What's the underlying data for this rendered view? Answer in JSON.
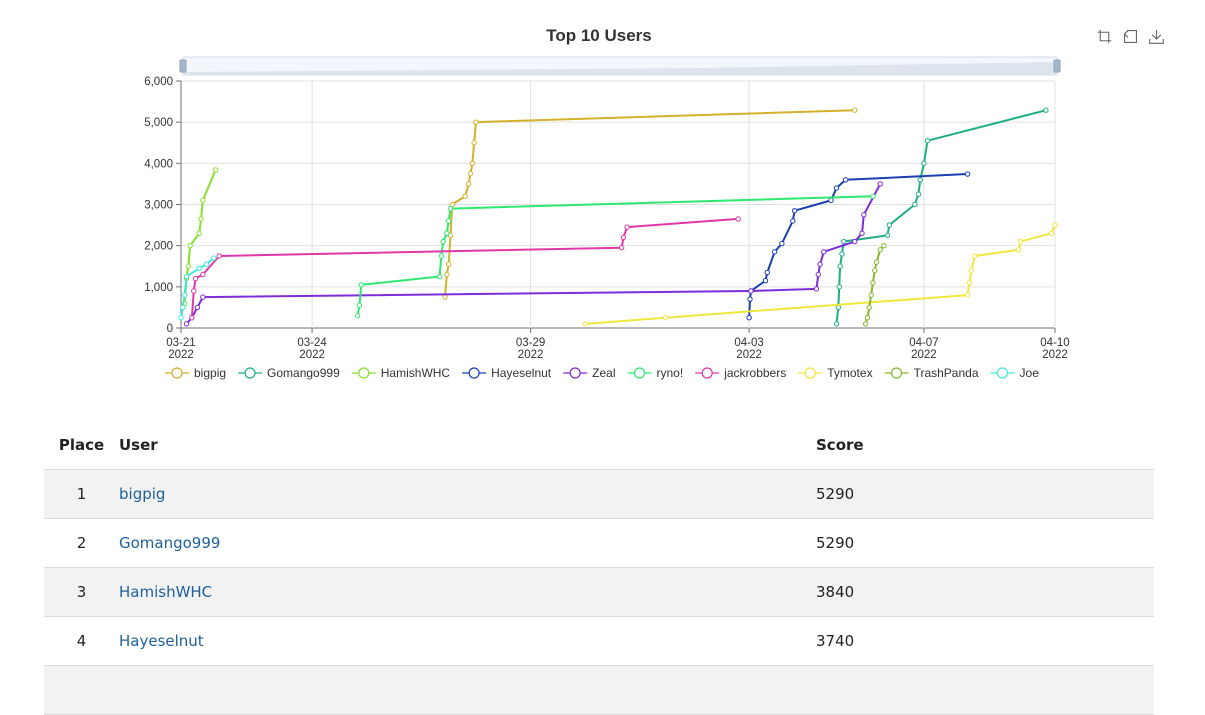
{
  "chart_data": {
    "type": "line",
    "title": "Top 10 Users",
    "x_ticks": [
      {
        "date": "2022-03-21",
        "line1": "03-21",
        "line2": "2022"
      },
      {
        "date": "2022-03-24",
        "line1": "03-24",
        "line2": "2022"
      },
      {
        "date": "2022-03-29",
        "line1": "03-29",
        "line2": "2022"
      },
      {
        "date": "2022-04-03",
        "line1": "04-03",
        "line2": "2022"
      },
      {
        "date": "2022-04-07",
        "line1": "04-07",
        "line2": "2022"
      },
      {
        "date": "2022-04-10",
        "line1": "04-10",
        "line2": "2022"
      }
    ],
    "xlim": [
      "2022-03-21T00:00",
      "2022-04-10T00:00"
    ],
    "y_ticks": [
      0,
      1000,
      2000,
      3000,
      4000,
      5000,
      6000
    ],
    "y_tick_labels": [
      "0",
      "1,000",
      "2,000",
      "3,000",
      "4,000",
      "5,000",
      "6,000"
    ],
    "ylim": [
      0,
      6000
    ],
    "grid": true,
    "legend_position": "bottom",
    "series": [
      {
        "name": "bigpig",
        "color": "#d4b12b",
        "points": [
          [
            "2022-03-27T01:00",
            750
          ],
          [
            "2022-03-27T02:00",
            1300
          ],
          [
            "2022-03-27T03:00",
            1550
          ],
          [
            "2022-03-27T04:00",
            2250
          ],
          [
            "2022-03-27T05:00",
            3000
          ],
          [
            "2022-03-27T12:00",
            3200
          ],
          [
            "2022-03-27T14:00",
            3500
          ],
          [
            "2022-03-27T15:00",
            3750
          ],
          [
            "2022-03-27T16:00",
            4000
          ],
          [
            "2022-03-27T17:00",
            4500
          ],
          [
            "2022-03-27T18:00",
            5000
          ],
          [
            "2022-04-05T10:00",
            5290
          ]
        ]
      },
      {
        "name": "Gomango999",
        "color": "#1fae84",
        "points": [
          [
            "2022-04-05T00:00",
            100
          ],
          [
            "2022-04-05T01:00",
            500
          ],
          [
            "2022-04-05T01:30",
            1000
          ],
          [
            "2022-04-05T02:00",
            1500
          ],
          [
            "2022-04-05T03:00",
            1800
          ],
          [
            "2022-04-05T04:00",
            2100
          ],
          [
            "2022-04-06T04:00",
            2250
          ],
          [
            "2022-04-06T05:00",
            2500
          ],
          [
            "2022-04-06T19:00",
            3000
          ],
          [
            "2022-04-06T21:00",
            3250
          ],
          [
            "2022-04-06T22:00",
            3600
          ],
          [
            "2022-04-07T00:00",
            4000
          ],
          [
            "2022-04-07T02:00",
            4550
          ],
          [
            "2022-04-09T19:00",
            5290
          ]
        ]
      },
      {
        "name": "HamishWHC",
        "color": "#86e02c",
        "points": [
          [
            "2022-03-21T02:00",
            600
          ],
          [
            "2022-03-21T03:00",
            1200
          ],
          [
            "2022-03-21T04:00",
            1500
          ],
          [
            "2022-03-21T05:00",
            2000
          ],
          [
            "2022-03-21T10:00",
            2300
          ],
          [
            "2022-03-21T11:00",
            2650
          ],
          [
            "2022-03-21T12:00",
            3100
          ],
          [
            "2022-03-21T19:00",
            3840
          ]
        ]
      },
      {
        "name": "Hayeselnut",
        "color": "#1c3fb2",
        "points": [
          [
            "2022-04-03T00:00",
            250
          ],
          [
            "2022-04-03T00:30",
            700
          ],
          [
            "2022-04-03T01:00",
            900
          ],
          [
            "2022-04-03T09:00",
            1150
          ],
          [
            "2022-04-03T10:00",
            1350
          ],
          [
            "2022-04-03T14:00",
            1850
          ],
          [
            "2022-04-03T18:00",
            2050
          ],
          [
            "2022-04-04T00:00",
            2600
          ],
          [
            "2022-04-04T01:00",
            2850
          ],
          [
            "2022-04-04T21:00",
            3100
          ],
          [
            "2022-04-05T00:00",
            3400
          ],
          [
            "2022-04-05T05:00",
            3600
          ],
          [
            "2022-04-08T00:00",
            3740
          ]
        ]
      },
      {
        "name": "Zeal",
        "color": "#7d2cd9",
        "points": [
          [
            "2022-03-21T03:00",
            100
          ],
          [
            "2022-03-21T06:00",
            250
          ],
          [
            "2022-03-21T09:00",
            500
          ],
          [
            "2022-03-21T12:00",
            750
          ],
          [
            "2022-04-03T01:00",
            900
          ],
          [
            "2022-04-04T13:00",
            950
          ],
          [
            "2022-04-04T14:00",
            1300
          ],
          [
            "2022-04-04T15:00",
            1550
          ],
          [
            "2022-04-04T17:00",
            1850
          ],
          [
            "2022-04-05T10:00",
            2100
          ],
          [
            "2022-04-05T14:00",
            2300
          ],
          [
            "2022-04-05T15:00",
            2750
          ],
          [
            "2022-04-06T00:00",
            3500
          ]
        ]
      },
      {
        "name": "ryno!",
        "color": "#2ee870",
        "points": [
          [
            "2022-03-25T01:00",
            300
          ],
          [
            "2022-03-25T02:00",
            550
          ],
          [
            "2022-03-25T03:00",
            1050
          ],
          [
            "2022-03-26T22:00",
            1250
          ],
          [
            "2022-03-26T23:00",
            1750
          ],
          [
            "2022-03-27T00:00",
            2100
          ],
          [
            "2022-03-27T02:00",
            2300
          ],
          [
            "2022-03-27T03:00",
            2600
          ],
          [
            "2022-03-27T04:00",
            2900
          ],
          [
            "2022-04-05T20:00",
            3200
          ]
        ]
      },
      {
        "name": "jackrobbers",
        "color": "#e038a8",
        "points": [
          [
            "2022-03-21T06:00",
            250
          ],
          [
            "2022-03-21T07:00",
            900
          ],
          [
            "2022-03-21T08:00",
            1200
          ],
          [
            "2022-03-21T12:00",
            1300
          ],
          [
            "2022-03-21T21:00",
            1750
          ],
          [
            "2022-03-31T02:00",
            1950
          ],
          [
            "2022-03-31T03:00",
            2200
          ],
          [
            "2022-03-31T05:00",
            2450
          ],
          [
            "2022-04-02T18:00",
            2650
          ]
        ]
      },
      {
        "name": "Tymotex",
        "color": "#eee83a",
        "points": [
          [
            "2022-03-30T06:00",
            100
          ],
          [
            "2022-04-01T02:00",
            250
          ],
          [
            "2022-04-08T00:00",
            800
          ],
          [
            "2022-04-08T01:00",
            1100
          ],
          [
            "2022-04-08T02:00",
            1400
          ],
          [
            "2022-04-08T04:00",
            1750
          ],
          [
            "2022-04-09T04:00",
            1900
          ],
          [
            "2022-04-09T05:00",
            2100
          ],
          [
            "2022-04-09T22:00",
            2300
          ],
          [
            "2022-04-10T00:00",
            2500
          ]
        ]
      },
      {
        "name": "TrashPanda",
        "color": "#88b82a",
        "points": [
          [
            "2022-04-05T16:00",
            100
          ],
          [
            "2022-04-05T17:00",
            250
          ],
          [
            "2022-04-05T18:00",
            500
          ],
          [
            "2022-04-05T19:00",
            800
          ],
          [
            "2022-04-05T20:00",
            1100
          ],
          [
            "2022-04-05T21:00",
            1400
          ],
          [
            "2022-04-05T22:00",
            1600
          ],
          [
            "2022-04-06T00:00",
            1900
          ],
          [
            "2022-04-06T02:00",
            2000
          ]
        ]
      },
      {
        "name": "Joe",
        "color": "#3fe9d8",
        "points": [
          [
            "2022-03-21T00:00",
            250
          ],
          [
            "2022-03-21T01:00",
            500
          ],
          [
            "2022-03-21T02:00",
            800
          ],
          [
            "2022-03-21T03:00",
            1250
          ],
          [
            "2022-03-21T10:00",
            1450
          ],
          [
            "2022-03-21T14:00",
            1550
          ],
          [
            "2022-03-21T18:00",
            1700
          ]
        ]
      }
    ]
  },
  "table": {
    "headers": {
      "place": "Place",
      "user": "User",
      "score": "Score"
    },
    "rows": [
      {
        "place": "1",
        "user": "bigpig",
        "score": "5290"
      },
      {
        "place": "2",
        "user": "Gomango999",
        "score": "5290"
      },
      {
        "place": "3",
        "user": "HamishWHC",
        "score": "3840"
      },
      {
        "place": "4",
        "user": "Hayeselnut",
        "score": "3740"
      }
    ]
  }
}
